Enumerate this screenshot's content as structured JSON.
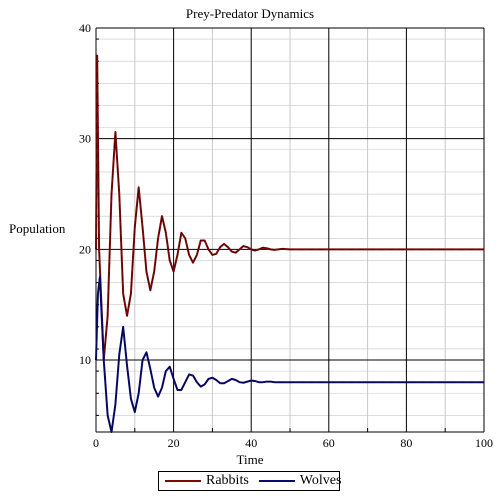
{
  "colors": {
    "rabbits": "#7a0a0a",
    "wolves": "#0a0a6e",
    "grid": "#000000",
    "minor_grid": "#c8c8c8"
  },
  "chart_data": {
    "type": "line",
    "title": "Prey-Predator Dynamics",
    "xlabel": "Time",
    "ylabel": "Population",
    "xlim": [
      0,
      100
    ],
    "ylim": [
      3.5,
      40
    ],
    "xticks": [
      "0",
      "20",
      "40",
      "60",
      "80",
      "100"
    ],
    "yticks": [
      "10",
      "20",
      "30",
      "40"
    ],
    "grid": true,
    "legend_position": "bottom-center",
    "series": [
      {
        "name": "Rabbits",
        "color": "#7a0a0a",
        "x": [
          0,
          0.3,
          0.8,
          2,
          3,
          4,
          5,
          6,
          7,
          8,
          9,
          10,
          11,
          12,
          13,
          14,
          15,
          16,
          17,
          18,
          19,
          20,
          21,
          22,
          23,
          24,
          25,
          26,
          27,
          28,
          29,
          30,
          31,
          32,
          33,
          34,
          35,
          36,
          37,
          38,
          39,
          40,
          41,
          42,
          43,
          44,
          45,
          46,
          47,
          48,
          50,
          52,
          54,
          56,
          58,
          60,
          70,
          80,
          90,
          100
        ],
        "y": [
          20,
          37.5,
          20,
          10,
          14,
          25,
          30.6,
          25,
          16,
          14,
          16,
          22,
          25.6,
          22,
          18,
          16.3,
          18,
          21,
          23,
          21.5,
          19,
          18,
          19.5,
          21.5,
          21,
          19.5,
          18.8,
          19.5,
          20.8,
          20.8,
          20,
          19.5,
          19.6,
          20.2,
          20.5,
          20.2,
          19.8,
          19.7,
          20,
          20.3,
          20.2,
          20,
          19.9,
          20,
          20.15,
          20.1,
          20,
          19.95,
          20,
          20.05,
          20,
          20,
          20,
          20,
          20,
          20,
          20,
          20,
          20,
          20
        ]
      },
      {
        "name": "Wolves",
        "color": "#0a0a6e",
        "x": [
          0,
          0.5,
          1,
          2,
          3,
          4,
          5,
          6,
          7,
          8,
          9,
          10,
          11,
          12,
          13,
          14,
          15,
          16,
          17,
          18,
          19,
          20,
          21,
          22,
          23,
          24,
          25,
          26,
          27,
          28,
          29,
          30,
          31,
          32,
          33,
          34,
          35,
          36,
          37,
          38,
          39,
          40,
          41,
          42,
          43,
          44,
          45,
          46,
          48,
          50,
          52,
          55,
          60,
          70,
          80,
          90,
          100
        ],
        "y": [
          10,
          16,
          17.5,
          10,
          5,
          3.5,
          6,
          10.5,
          13,
          9.5,
          6.5,
          5.3,
          7,
          10,
          10.7,
          9.2,
          7.5,
          6.7,
          7.5,
          9,
          9.4,
          8.3,
          7.3,
          7.3,
          8,
          8.7,
          8.6,
          8,
          7.6,
          7.8,
          8.3,
          8.4,
          8.2,
          7.9,
          7.9,
          8.1,
          8.3,
          8.2,
          8,
          7.95,
          8.05,
          8.15,
          8.1,
          8,
          8,
          8.05,
          8.05,
          8,
          8,
          8,
          8,
          8,
          8,
          8,
          8,
          8,
          8
        ]
      }
    ]
  }
}
